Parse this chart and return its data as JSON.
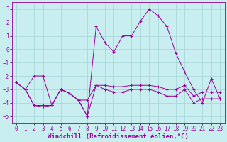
{
  "xlabel": "Windchill (Refroidissement éolien,°C)",
  "bg_color": "#c8eef0",
  "grid_color": "#aad8da",
  "line_color": "#990099",
  "x": [
    0,
    1,
    2,
    3,
    4,
    5,
    6,
    7,
    8,
    9,
    10,
    11,
    12,
    13,
    14,
    15,
    16,
    17,
    18,
    19,
    20,
    21,
    22,
    23
  ],
  "line1": [
    -2.5,
    -3.0,
    -2.0,
    -2.0,
    -4.2,
    -3.0,
    -3.3,
    -3.8,
    -5.0,
    1.7,
    0.5,
    -0.2,
    1.0,
    1.0,
    2.1,
    3.0,
    2.5,
    1.7,
    -0.3,
    -1.7,
    -3.0,
    -4.0,
    -2.2,
    -3.7
  ],
  "line2": [
    -2.5,
    -3.0,
    -4.2,
    -4.2,
    -4.2,
    -3.0,
    -3.3,
    -3.8,
    -5.0,
    -2.7,
    -3.0,
    -3.2,
    -3.2,
    -3.0,
    -3.0,
    -3.0,
    -3.2,
    -3.5,
    -3.5,
    -3.0,
    -4.0,
    -3.7,
    -3.7,
    -3.7
  ],
  "line3": [
    -2.5,
    -3.0,
    -4.2,
    -4.3,
    -4.2,
    -3.0,
    -3.3,
    -3.8,
    -3.8,
    -2.7,
    -2.7,
    -2.8,
    -2.8,
    -2.7,
    -2.7,
    -2.7,
    -2.8,
    -3.0,
    -3.0,
    -2.7,
    -3.5,
    -3.2,
    -3.2,
    -3.2
  ],
  "ylim": [
    -5.5,
    3.5
  ],
  "xlim": [
    -0.5,
    23.5
  ],
  "yticks": [
    -5,
    -4,
    -3,
    -2,
    -1,
    0,
    1,
    2,
    3
  ],
  "xticks": [
    0,
    1,
    2,
    3,
    4,
    5,
    6,
    7,
    8,
    9,
    10,
    11,
    12,
    13,
    14,
    15,
    16,
    17,
    18,
    19,
    20,
    21,
    22,
    23
  ],
  "tick_fontsize": 5.5,
  "xlabel_fontsize": 6.5,
  "linewidth": 0.7,
  "markersize": 3.0
}
